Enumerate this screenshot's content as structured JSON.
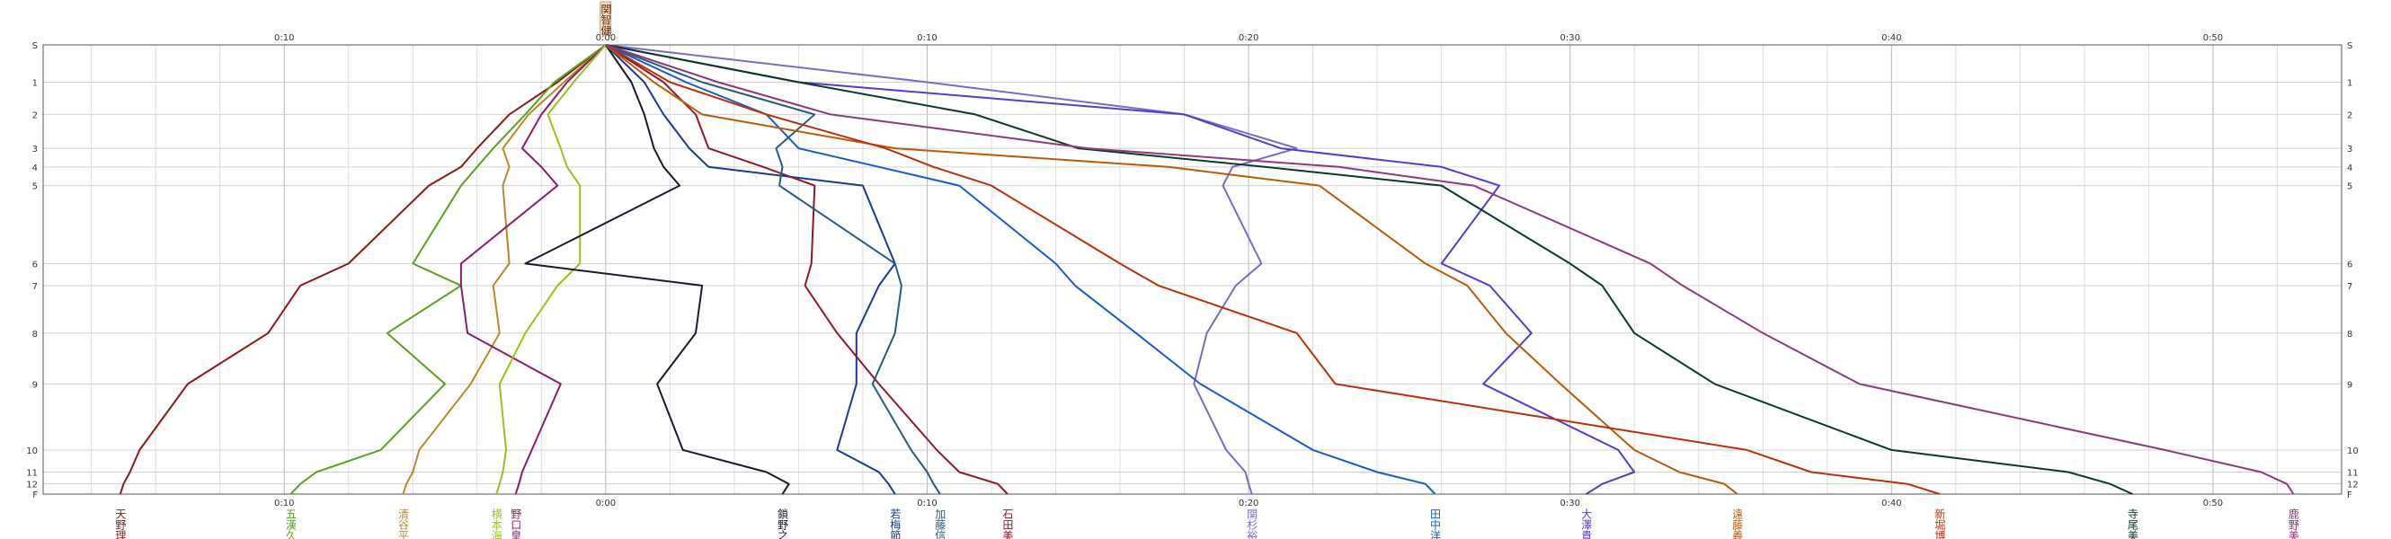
{
  "chart_data": {
    "type": "line",
    "title": "",
    "xlabel": "",
    "ylabel": "",
    "x_unit": "minutes relative to reference runner",
    "xlim": [
      -17.5,
      54
    ],
    "x_ticks": [
      {
        "value": -10,
        "label": "0:10"
      },
      {
        "value": 0,
        "label": "0:00"
      },
      {
        "value": 10,
        "label": "0:10"
      },
      {
        "value": 20,
        "label": "0:20"
      },
      {
        "value": 30,
        "label": "0:30"
      },
      {
        "value": 40,
        "label": "0:40"
      },
      {
        "value": 50,
        "label": "0:50"
      }
    ],
    "controls": [
      "S",
      "1",
      "2",
      "3",
      "4",
      "5",
      "6",
      "7",
      "8",
      "9",
      "10",
      "11",
      "12",
      "F"
    ],
    "control_positions": [
      0,
      1.1,
      2.05,
      3.05,
      3.6,
      4.15,
      6.45,
      7.1,
      8.5,
      10.0,
      11.95,
      12.6,
      12.95,
      13.25
    ],
    "grid": true,
    "reference_label": "関智健",
    "series": [
      {
        "name": "天野理",
        "color": "#8b1a1a",
        "values": [
          0,
          -1.5,
          -3,
          -4,
          -4.5,
          -5.5,
          -8,
          -9.5,
          -10.5,
          -13,
          -14.5,
          -14.8,
          -15.0,
          -15.1
        ]
      },
      {
        "name": "五漢久",
        "color": "#5aa01e",
        "values": [
          0,
          -1.6,
          -2.5,
          -3.5,
          -4,
          -4.5,
          -6,
          -4.5,
          -6.8,
          -5,
          -7,
          -9,
          -9.5,
          -9.8
        ]
      },
      {
        "name": "清谷平",
        "color": "#b58b2a",
        "values": [
          0,
          -1.3,
          -2.4,
          -3.2,
          -3,
          -3.2,
          -3,
          -3.5,
          -3.3,
          -4.2,
          -5.8,
          -6,
          -6.2,
          -6.3
        ]
      },
      {
        "name": "野口皇",
        "color": "#8b1a6b",
        "values": [
          0,
          -1.2,
          -2,
          -2.6,
          -2,
          -1.5,
          -4.5,
          -4.5,
          -4.3,
          -1.4,
          -2.3,
          -2.6,
          -2.7,
          -2.8
        ]
      },
      {
        "name": "横本海",
        "color": "#9ac01e",
        "values": [
          0,
          -1,
          -1.8,
          -1.4,
          -1.2,
          -0.8,
          -0.8,
          -1.5,
          -2.5,
          -3.3,
          -3.1,
          -3.2,
          -3.3,
          -3.4
        ]
      },
      {
        "name": "鎖野之",
        "color": "#1a1a2e",
        "values": [
          0,
          0.8,
          1.2,
          1.5,
          1.8,
          2.3,
          -2.5,
          3,
          2.8,
          1.6,
          2.4,
          5,
          5.7,
          5.5
        ]
      },
      {
        "name": "若梅節",
        "color": "#1a3a8b",
        "values": [
          0,
          1.2,
          1.8,
          2.6,
          3.2,
          8,
          9,
          8.5,
          7.8,
          7.8,
          7.2,
          8.5,
          8.8,
          9
        ]
      },
      {
        "name": "石田美",
        "color": "#8b1a2a",
        "values": [
          0,
          1.8,
          2.8,
          3.2,
          4.9,
          6.5,
          6.4,
          6.2,
          7.2,
          8.5,
          10.3,
          11,
          12.2,
          12.5
        ]
      },
      {
        "name": "加藤信",
        "color": "#2a5a7a",
        "values": [
          0,
          3,
          6.5,
          5.3,
          5.5,
          5.4,
          9,
          9.2,
          9,
          8.3,
          9.5,
          10,
          10.2,
          10.4
        ]
      },
      {
        "name": "関杉裕",
        "color": "#7a6ac8",
        "values": [
          0,
          10,
          18,
          21.5,
          19.5,
          19.2,
          20.4,
          19.6,
          18.7,
          18.3,
          19.3,
          19.9,
          20,
          20.1
        ]
      },
      {
        "name": "田中洋",
        "color": "#1a5ac8",
        "values": [
          0,
          2.5,
          5,
          6,
          8.5,
          11,
          14,
          14.6,
          16.5,
          18.5,
          22,
          24,
          25.5,
          25.8
        ]
      },
      {
        "name": "大澤貴",
        "color": "#5a3ac8",
        "values": [
          0,
          6,
          18,
          21,
          26,
          27.8,
          26,
          27.5,
          28.8,
          27.3,
          31.5,
          32,
          31,
          30.5
        ]
      },
      {
        "name": "遠藤義",
        "color": "#b85a0a",
        "values": [
          0,
          1.5,
          3,
          9,
          17.5,
          22.2,
          25.5,
          26.8,
          28,
          29.7,
          32,
          33.4,
          34.8,
          35.2
        ]
      },
      {
        "name": "新堀博",
        "color": "#b8300a",
        "values": [
          0,
          2,
          5,
          8.7,
          10.2,
          12,
          16,
          17.2,
          21.5,
          22.7,
          35.5,
          37.5,
          40.5,
          41.5
        ]
      },
      {
        "name": "寺尾美",
        "color": "#0a3a2a",
        "values": [
          0,
          6,
          11.5,
          14.7,
          20.5,
          26,
          30,
          31,
          32,
          34.5,
          40,
          45.5,
          46.8,
          47.5
        ]
      },
      {
        "name": "鹿野美",
        "color": "#8b3a7a",
        "values": [
          0,
          3.5,
          7,
          15,
          22.8,
          27,
          32.5,
          33.5,
          36,
          39,
          48.5,
          51.5,
          52.3,
          52.5
        ]
      }
    ]
  }
}
